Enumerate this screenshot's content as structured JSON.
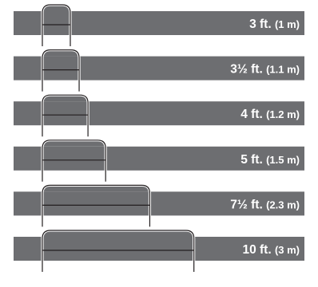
{
  "rows": [
    {
      "label": "3 ft.",
      "metric": "(1 m)",
      "length_ft": 3
    },
    {
      "label": "3½ ft.",
      "metric": "(1.1 m)",
      "length_ft": 3.5
    },
    {
      "label": "4 ft.",
      "metric": "(1.2 m)",
      "length_ft": 4
    },
    {
      "label": "5 ft.",
      "metric": "(1.5 m)",
      "length_ft": 5
    },
    {
      "label": "7½ ft.",
      "metric": "(2.3 m)",
      "length_ft": 7.5
    },
    {
      "label": "10 ft.",
      "metric": "(3 m)",
      "length_ft": 10
    }
  ],
  "colors": {
    "bar": "#6d6e71",
    "outline": "#231f20",
    "text": "#ffffff",
    "background": "#ffffff"
  }
}
